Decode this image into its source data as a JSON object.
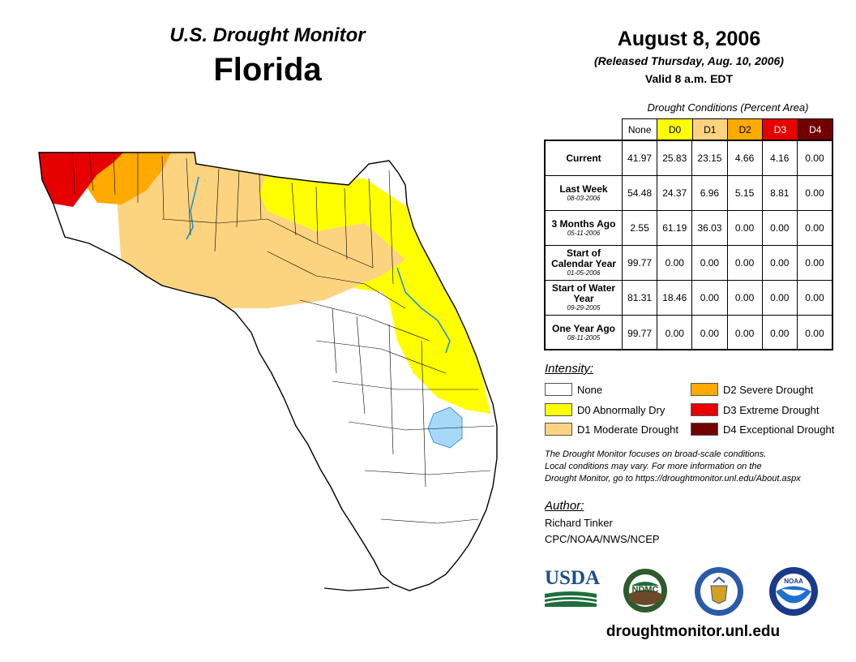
{
  "header": {
    "title": "U.S. Drought Monitor",
    "state": "Florida",
    "date": "August 8, 2006",
    "released": "(Released Thursday, Aug. 10, 2006)",
    "valid": "Valid 8 a.m. EDT"
  },
  "table": {
    "caption": "Drought Conditions (Percent Area)",
    "columns": [
      "None",
      "D0",
      "D1",
      "D2",
      "D3",
      "D4"
    ],
    "column_colors": [
      "#ffffff",
      "#ffff00",
      "#fcd37f",
      "#ffaa00",
      "#e60000",
      "#730000"
    ],
    "column_text_colors": [
      "#000000",
      "#000000",
      "#000000",
      "#000000",
      "#ffffff",
      "#ffffff"
    ],
    "rows": [
      {
        "label": "Current",
        "date": "",
        "values": [
          "41.97",
          "25.83",
          "23.15",
          "4.66",
          "4.16",
          "0.00"
        ]
      },
      {
        "label": "Last Week",
        "date": "08-03-2006",
        "values": [
          "54.48",
          "24.37",
          "6.96",
          "5.15",
          "8.81",
          "0.00"
        ]
      },
      {
        "label": "3 Months Ago",
        "date": "05-11-2006",
        "values": [
          "2.55",
          "61.19",
          "36.03",
          "0.00",
          "0.00",
          "0.00"
        ]
      },
      {
        "label": "Start of Calendar Year",
        "date": "01-05-2006",
        "values": [
          "99.77",
          "0.00",
          "0.00",
          "0.00",
          "0.00",
          "0.00"
        ]
      },
      {
        "label": "Start of Water Year",
        "date": "09-29-2005",
        "values": [
          "81.31",
          "18.46",
          "0.00",
          "0.00",
          "0.00",
          "0.00"
        ]
      },
      {
        "label": "One Year Ago",
        "date": "08-11-2005",
        "values": [
          "99.77",
          "0.00",
          "0.00",
          "0.00",
          "0.00",
          "0.00"
        ]
      }
    ]
  },
  "legend": {
    "title": "Intensity:",
    "items": [
      {
        "label": "None",
        "color": "#ffffff"
      },
      {
        "label": "D0 Abnormally Dry",
        "color": "#ffff00"
      },
      {
        "label": "D1 Moderate Drought",
        "color": "#fcd37f"
      },
      {
        "label": "D2 Severe Drought",
        "color": "#ffaa00"
      },
      {
        "label": "D3 Extreme Drought",
        "color": "#e60000"
      },
      {
        "label": "D4 Exceptional Drought",
        "color": "#730000"
      }
    ]
  },
  "note": {
    "line1": "The Drought Monitor focuses on broad-scale conditions.",
    "line2": "Local conditions may vary. For more information on the",
    "line3": "Drought Monitor, go to https://droughtmonitor.unl.edu/About.aspx"
  },
  "author": {
    "title": "Author:",
    "name": "Richard Tinker",
    "org": "CPC/NOAA/NWS/NCEP"
  },
  "logos": {
    "usda": "USDA",
    "ndmc": "NDMC",
    "noaa": "NOAA",
    "commerce_icon": "department-of-commerce-seal-icon"
  },
  "footer": {
    "url": "droughtmonitor.unl.edu"
  }
}
